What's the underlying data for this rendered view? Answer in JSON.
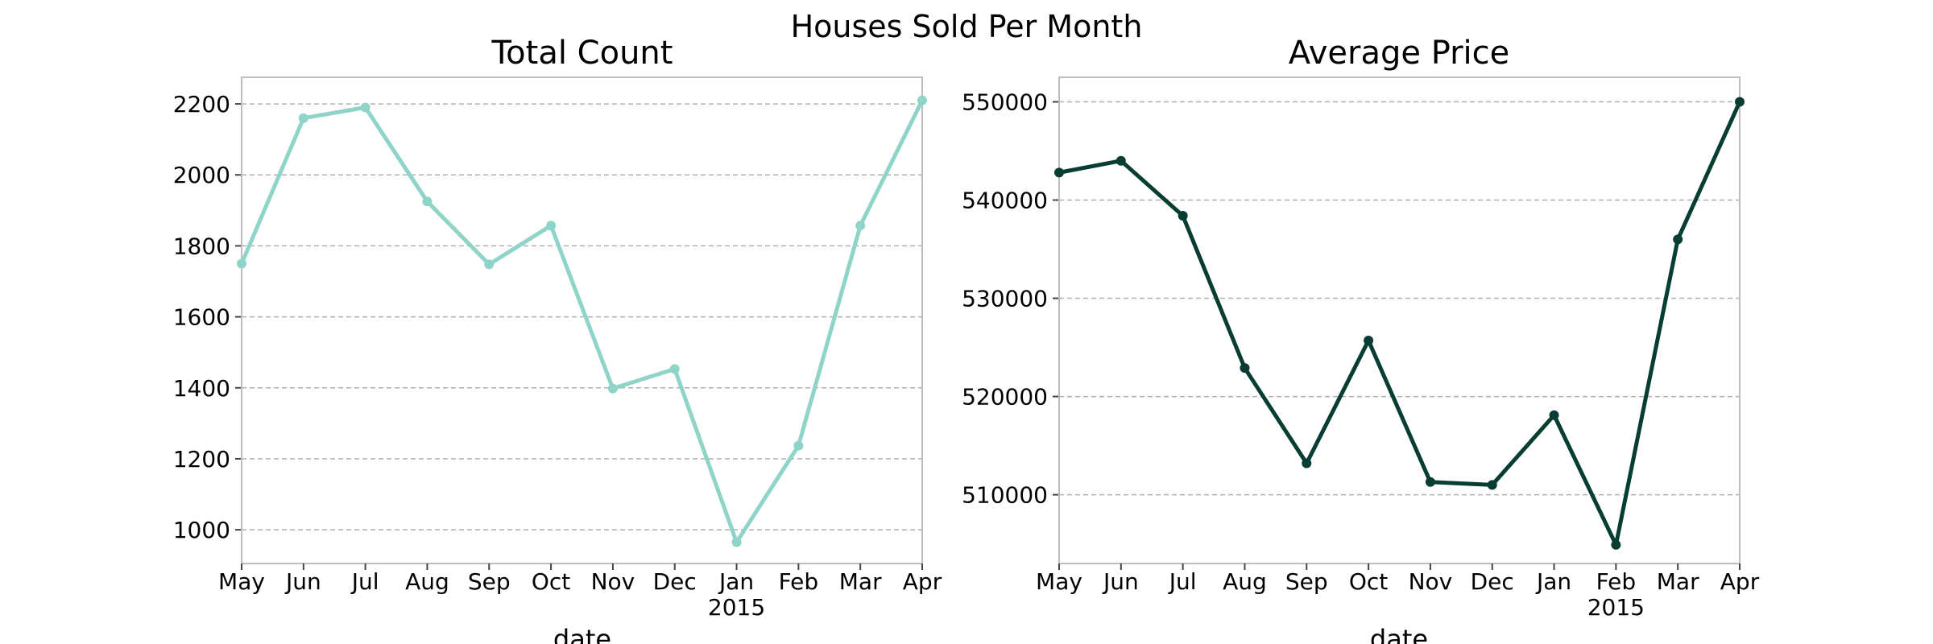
{
  "figure": {
    "suptitle": "Houses Sold Per Month"
  },
  "chart_data": [
    {
      "type": "line",
      "title": "Total Count",
      "xlabel": "date",
      "ylabel": "",
      "x": [
        "May",
        "Jun",
        "Jul",
        "Aug",
        "Sep",
        "Oct",
        "Nov",
        "Dec",
        "Jan",
        "Feb",
        "Mar",
        "Apr"
      ],
      "x_year_label": {
        "under": "Jan",
        "text": "2015"
      },
      "values": [
        1750,
        2160,
        2190,
        1925,
        1748,
        1857,
        1398,
        1453,
        965,
        1237,
        1857,
        2210
      ],
      "ylim": [
        905,
        2275
      ],
      "yticks": [
        1000,
        1200,
        1400,
        1600,
        1800,
        2000,
        2200
      ],
      "grid": "horizontal",
      "color": "#8fd4c8"
    },
    {
      "type": "line",
      "title": "Average Price",
      "xlabel": "date",
      "ylabel": "",
      "x": [
        "May",
        "Jun",
        "Jul",
        "Aug",
        "Sep",
        "Oct",
        "Nov",
        "Dec",
        "Jan",
        "Feb",
        "Mar",
        "Apr"
      ],
      "x_year_label": {
        "under": "Feb",
        "text": "2015"
      },
      "values": [
        542800,
        544000,
        538400,
        522900,
        513200,
        525700,
        511300,
        511000,
        518100,
        504900,
        536000,
        550000
      ],
      "ylim": [
        503000,
        552500
      ],
      "yticks": [
        510000,
        520000,
        530000,
        540000,
        550000
      ],
      "grid": "horizontal",
      "color": "#073d33"
    }
  ]
}
